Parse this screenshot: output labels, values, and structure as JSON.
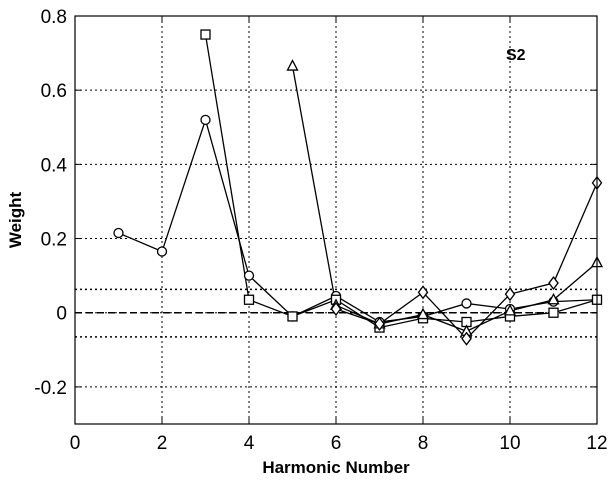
{
  "chart_data": {
    "type": "line",
    "xlabel": "Harmonic Number",
    "ylabel": "Weight",
    "xlim": [
      0,
      12
    ],
    "ylim": [
      -0.3,
      0.8
    ],
    "xticks": [
      0,
      2,
      4,
      6,
      8,
      10,
      12
    ],
    "yticks": [
      -0.2,
      0,
      0.2,
      0.4,
      0.6,
      0.8
    ],
    "xtick_labels": [
      "0",
      "2",
      "4",
      "6",
      "8",
      "10",
      "12"
    ],
    "ytick_labels": [
      "-0.2",
      "0",
      "0.2",
      "0.4",
      "0.6",
      "0.8"
    ],
    "grid": true,
    "annotation": "S2",
    "reference_lines": [
      {
        "y": 0.063,
        "style": "dotted"
      },
      {
        "y": 0,
        "style": "dashed"
      },
      {
        "y": -0.065,
        "style": "dotted"
      }
    ],
    "series": [
      {
        "marker": "circle",
        "x": [
          1,
          2,
          3,
          4,
          5,
          6,
          7,
          8,
          9,
          10,
          11,
          12
        ],
        "values": [
          0.215,
          0.165,
          0.52,
          0.1,
          -0.01,
          0.045,
          -0.025,
          -0.01,
          0.025,
          0.01,
          0.03,
          0.035
        ]
      },
      {
        "marker": "square",
        "x": [
          3,
          4,
          5,
          6,
          7,
          8,
          9,
          10,
          11,
          12
        ],
        "values": [
          0.75,
          0.035,
          -0.01,
          0.035,
          -0.04,
          -0.015,
          -0.025,
          -0.01,
          0.0,
          0.035
        ]
      },
      {
        "marker": "triangle",
        "x": [
          5,
          6,
          7,
          8,
          9,
          10,
          11,
          12
        ],
        "values": [
          0.665,
          0.02,
          -0.03,
          -0.005,
          -0.05,
          0.005,
          0.035,
          0.135
        ]
      },
      {
        "marker": "diamond",
        "x": [
          6,
          7,
          8,
          9,
          10,
          11,
          12
        ],
        "values": [
          0.01,
          -0.03,
          0.055,
          -0.07,
          0.05,
          0.08,
          0.35
        ]
      }
    ]
  }
}
